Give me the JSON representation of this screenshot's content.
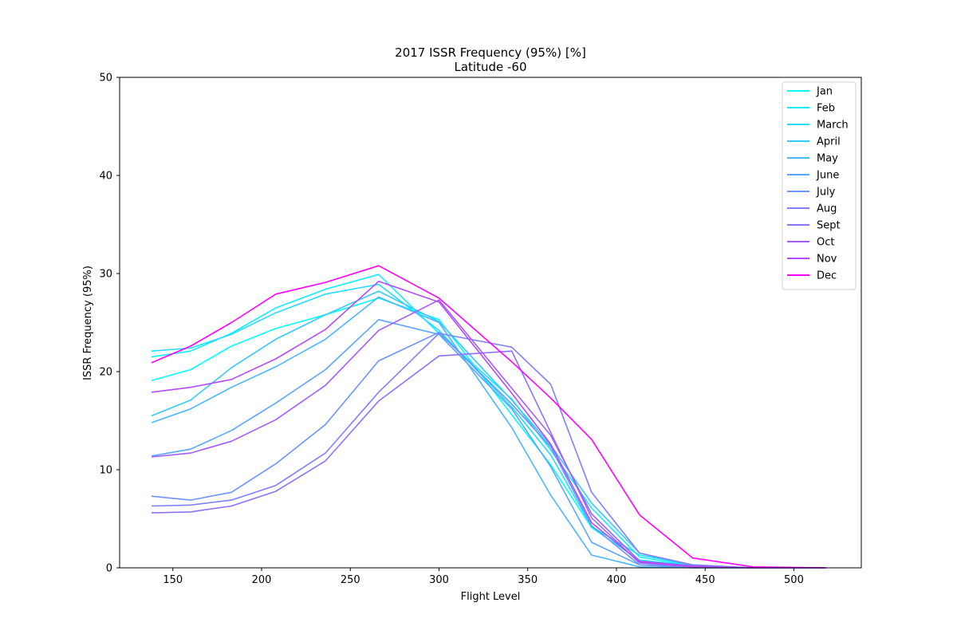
{
  "chart_data": {
    "type": "line",
    "title": "2017 ISSR Frequency (95%) [%]",
    "subtitle": "Latitude -60",
    "xlabel": "Flight Level",
    "ylabel": "ISSR Frequency (95%)",
    "xlim": [
      120,
      538
    ],
    "ylim": [
      0,
      50
    ],
    "xticks": [
      150,
      200,
      250,
      300,
      350,
      400,
      450,
      500
    ],
    "yticks": [
      0,
      10,
      20,
      30,
      40,
      50
    ],
    "grid": false,
    "legend_position": "top-right",
    "x": [
      138,
      160,
      183,
      208,
      236,
      266,
      300,
      341,
      363,
      386,
      413,
      443,
      477,
      518
    ],
    "series": [
      {
        "name": "Jan",
        "color": "#00ffff",
        "values": [
          19.1,
          20.2,
          22.6,
          24.4,
          25.8,
          27.5,
          25.3,
          15.6,
          10.5,
          4.1,
          0.8,
          0.2,
          0.0,
          0.0
        ]
      },
      {
        "name": "Feb",
        "color": "#12edff",
        "values": [
          21.5,
          22.1,
          23.9,
          26.5,
          28.4,
          29.9,
          23.9,
          17.2,
          12.0,
          6.1,
          1.1,
          0.2,
          0.0,
          0.0
        ]
      },
      {
        "name": "March",
        "color": "#22ddff",
        "values": [
          22.1,
          22.4,
          23.8,
          26.0,
          27.9,
          28.9,
          24.2,
          16.4,
          11.5,
          4.2,
          1.3,
          0.3,
          0.0,
          0.0
        ]
      },
      {
        "name": "April",
        "color": "#36c9ff",
        "values": [
          15.5,
          17.1,
          20.4,
          23.3,
          25.8,
          28.2,
          25.1,
          17.1,
          12.5,
          6.6,
          1.5,
          0.2,
          0.0,
          0.0
        ]
      },
      {
        "name": "May",
        "color": "#48b7ff",
        "values": [
          14.8,
          16.2,
          18.4,
          20.5,
          23.3,
          27.6,
          25.0,
          14.3,
          7.4,
          1.3,
          0.1,
          0.0,
          0.0,
          0.0
        ]
      },
      {
        "name": "June",
        "color": "#5aa5ff",
        "values": [
          11.4,
          12.1,
          14.0,
          16.8,
          20.2,
          25.3,
          23.8,
          16.2,
          10.3,
          2.6,
          0.3,
          0.0,
          0.0,
          0.0
        ]
      },
      {
        "name": "July",
        "color": "#6c93ff",
        "values": [
          7.3,
          6.9,
          7.7,
          10.6,
          14.6,
          21.1,
          24.0,
          16.7,
          12.3,
          4.3,
          0.3,
          0.1,
          0.0,
          0.0
        ]
      },
      {
        "name": "Aug",
        "color": "#7e81ff",
        "values": [
          6.3,
          6.4,
          6.9,
          8.4,
          11.7,
          17.9,
          23.9,
          22.5,
          18.7,
          7.7,
          1.5,
          0.3,
          0.0,
          0.0
        ]
      },
      {
        "name": "Sept",
        "color": "#906fff",
        "values": [
          5.6,
          5.7,
          6.3,
          7.8,
          10.9,
          17.0,
          21.6,
          22.1,
          13.8,
          5.1,
          0.5,
          0.1,
          0.0,
          0.0
        ]
      },
      {
        "name": "Oct",
        "color": "#a25dff",
        "values": [
          11.3,
          11.7,
          12.9,
          15.1,
          18.6,
          24.2,
          27.3,
          18.3,
          13.5,
          5.5,
          0.7,
          0.2,
          0.0,
          0.0
        ]
      },
      {
        "name": "Nov",
        "color": "#b44bff",
        "values": [
          17.9,
          18.4,
          19.2,
          21.3,
          24.3,
          29.2,
          27.1,
          17.8,
          12.6,
          4.6,
          0.6,
          0.1,
          0.0,
          0.0
        ]
      },
      {
        "name": "Dec",
        "color": "#ff00ff",
        "values": [
          20.9,
          22.6,
          25.0,
          27.9,
          29.1,
          30.8,
          27.5,
          21.0,
          17.3,
          13.1,
          5.4,
          1.0,
          0.1,
          0.0
        ]
      }
    ]
  }
}
